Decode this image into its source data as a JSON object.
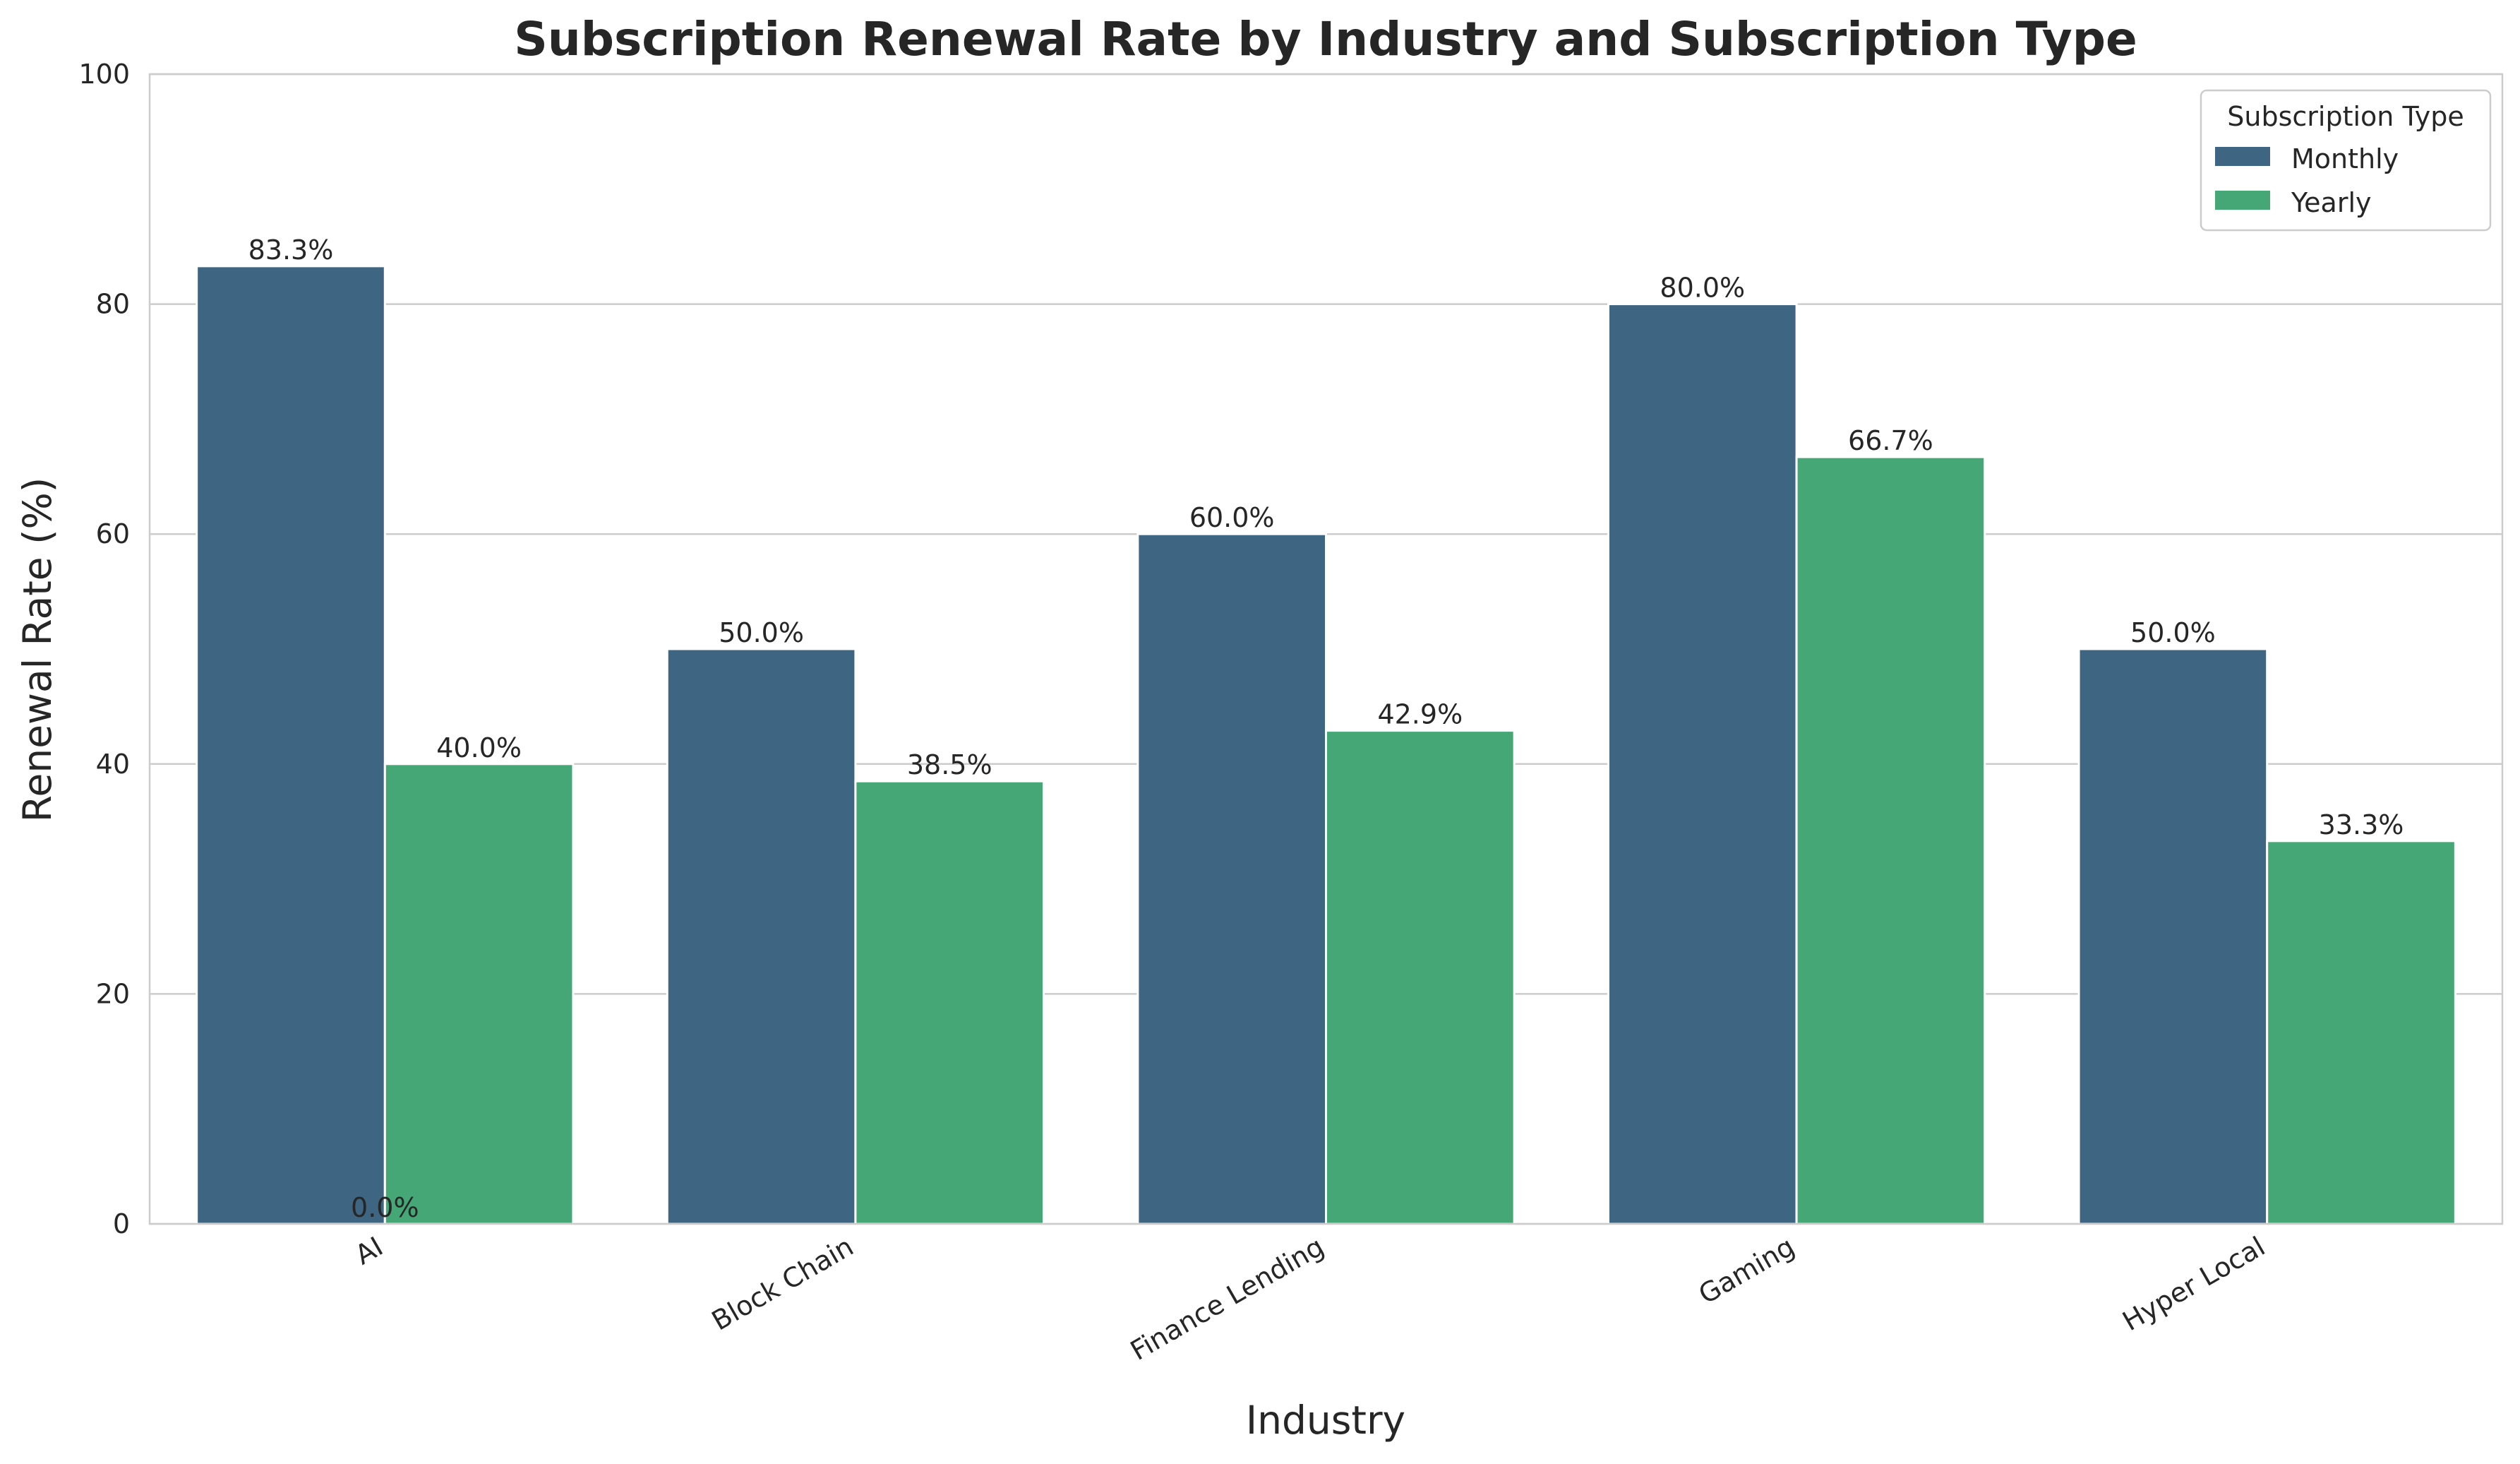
{
  "chart_data": {
    "type": "bar",
    "title": "Subscription Renewal Rate by Industry and Subscription Type",
    "xlabel": "Industry",
    "ylabel": "Renewal Rate (%)",
    "ylim": [
      0,
      100
    ],
    "yticks": [
      0,
      20,
      40,
      60,
      80,
      100
    ],
    "grid": "horizontal",
    "categories": [
      "AI",
      "Block Chain",
      "Finance Lending",
      "Gaming",
      "Hyper Local"
    ],
    "series": [
      {
        "name": "Monthly",
        "color": "#3e6581",
        "values": [
          83.3,
          50.0,
          60.0,
          80.0,
          50.0
        ]
      },
      {
        "name": "Yearly",
        "color": "#45a775",
        "values": [
          40.0,
          38.5,
          42.9,
          66.7,
          33.3
        ]
      }
    ],
    "data_labels": {
      "Monthly": [
        "83.3%",
        "50.0%",
        "60.0%",
        "80.0%",
        "50.0%"
      ],
      "Yearly": [
        "40.0%",
        "38.5%",
        "42.9%",
        "66.7%",
        "33.3%"
      ]
    },
    "extra_label": "0.0%",
    "legend": {
      "title": "Subscription Type",
      "placement": "top-right"
    }
  }
}
